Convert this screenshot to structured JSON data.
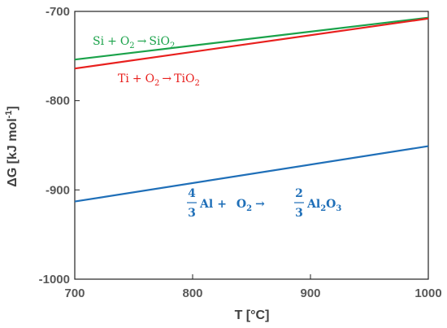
{
  "chart_data": {
    "type": "line",
    "xlabel": "T [°C]",
    "ylabel_main": "ΔG [kJ mol",
    "ylabel_sup": "-1",
    "ylabel_end": "]",
    "xlim": [
      700,
      1000
    ],
    "ylim": [
      -1000,
      -700
    ],
    "xticks": [
      700,
      800,
      900,
      1000
    ],
    "yticks": [
      -1000,
      -900,
      -800,
      -700
    ],
    "grid": false,
    "series": [
      {
        "id": "si",
        "color": "#1aa24a",
        "x": [
          700,
          1000
        ],
        "y": [
          -754,
          -707
        ]
      },
      {
        "id": "ti",
        "color": "#e8201e",
        "x": [
          700,
          1000
        ],
        "y": [
          -764,
          -708
        ]
      },
      {
        "id": "al",
        "color": "#1f6fb8",
        "x": [
          700,
          1000
        ],
        "y": [
          -913,
          -851
        ]
      }
    ],
    "annotations": {
      "si": {
        "el1": "Si",
        "op": "+",
        "el2": "O",
        "sub2": "2",
        "arrow": "→",
        "prod": "SiO",
        "subp": "2"
      },
      "ti": {
        "el1": "Ti",
        "op": "+",
        "el2": "O",
        "sub2": "2",
        "arrow": "→",
        "prod": "TiO",
        "subp": "2"
      },
      "al": {
        "num1": "4",
        "den1": "3",
        "el1": "Al",
        "op": "+",
        "el2": "O",
        "sub2": "2",
        "arrow": "→",
        "num2": "2",
        "den2": "3",
        "prodA": "Al",
        "subA": "2",
        "prodB": "O",
        "subB": "3"
      }
    }
  }
}
